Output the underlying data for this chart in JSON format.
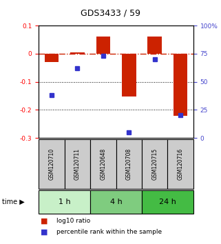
{
  "title": "GDS3433 / 59",
  "samples": [
    "GSM120710",
    "GSM120711",
    "GSM120648",
    "GSM120708",
    "GSM120715",
    "GSM120716"
  ],
  "log10_ratio": [
    -0.03,
    0.005,
    0.062,
    -0.152,
    0.062,
    -0.222
  ],
  "percentile_rank": [
    38,
    62,
    73,
    5,
    70,
    20
  ],
  "groups": [
    {
      "label": "1 h",
      "indices": [
        0,
        1
      ],
      "color": "#c8f0c8"
    },
    {
      "label": "4 h",
      "indices": [
        2,
        3
      ],
      "color": "#7fcc7f"
    },
    {
      "label": "24 h",
      "indices": [
        4,
        5
      ],
      "color": "#44bb44"
    }
  ],
  "ylim_left": [
    -0.3,
    0.1
  ],
  "ylim_right": [
    0,
    100
  ],
  "yticks_left": [
    0.1,
    0.0,
    -0.1,
    -0.2,
    -0.3
  ],
  "yticks_right": [
    100,
    75,
    50,
    25,
    0
  ],
  "bar_color": "#cc2200",
  "dot_color": "#3333cc",
  "hline_color": "#cc2200",
  "hline_y": 0.0,
  "dotted_lines": [
    -0.1,
    -0.2
  ],
  "bar_width": 0.55,
  "background_color": "#ffffff",
  "plot_bg": "#ffffff",
  "title_fontsize": 9,
  "tick_fontsize": 6.5,
  "sample_fontsize": 5.5,
  "group_fontsize": 8,
  "legend_fontsize": 6.5,
  "time_label_fontsize": 7
}
